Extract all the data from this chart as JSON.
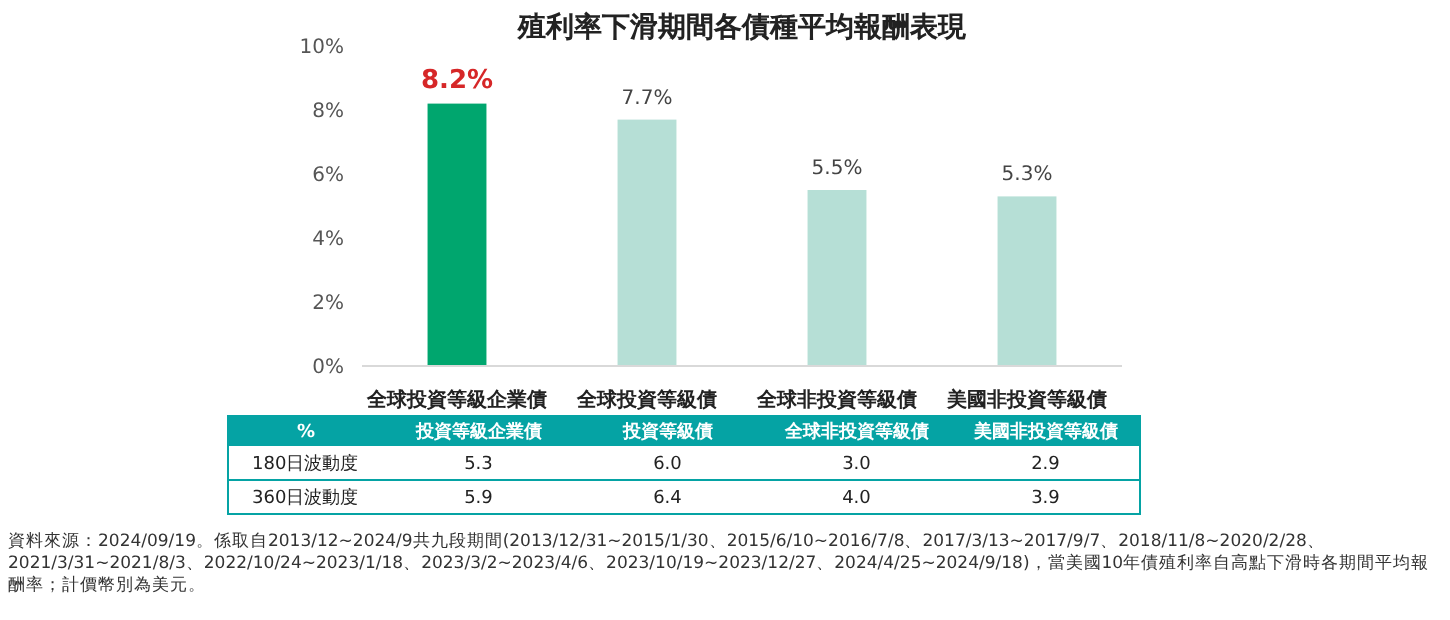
{
  "chart_data": [
    {
      "type": "bar",
      "title": "殖利率下滑期間各債種平均報酬表現",
      "categories": [
        "全球投資等級企業債",
        "全球投資等級債",
        "全球非投資等級債",
        "美國非投資等級債"
      ],
      "values": [
        8.2,
        7.7,
        5.5,
        5.3
      ],
      "colors": [
        "#00a66e",
        "#b6dfd6",
        "#b6dfd6",
        "#b6dfd6"
      ],
      "value_labels": [
        "8.2%",
        "7.7%",
        "5.5%",
        "5.3%"
      ],
      "ylim": [
        0,
        10
      ],
      "yticks": [
        {
          "value": 0,
          "label": "0%"
        },
        {
          "value": 2,
          "label": "2%"
        },
        {
          "value": 4,
          "label": "4%"
        },
        {
          "value": 6,
          "label": "6%"
        },
        {
          "value": 8,
          "label": "8%"
        },
        {
          "value": 10,
          "label": "10%"
        }
      ],
      "grid": false,
      "annotations": [
        "資料來源：2024/09/19。係取自2013/12~2024/9共九段期間(2013/12/31~2015/1/30、2015/6/10~2016/7/8、2017/3/13~2017/9/7、2018/11/8~2020/2/28、2021/3/31~2021/8/3、2022/10/24~2023/1/18、2023/3/2~2023/4/6、2023/10/19~2023/12/27、2024/4/25~2024/9/18)，當美國10年債殖利率自高點下滑時各期間平均報酬率；計價幣別為美元。"
      ]
    },
    {
      "type": "other",
      "title": "%",
      "categories": [
        "投資等級企業債",
        "投資等級債",
        "全球非投資等級債",
        "美國非投資等級債"
      ],
      "series": [
        {
          "name": "180日波動度",
          "values": [
            5.3,
            6.0,
            3.0,
            2.9
          ],
          "value_labels": [
            "5.3",
            "6.0",
            "3.0",
            "2.9"
          ]
        },
        {
          "name": "360日波動度",
          "values": [
            5.9,
            6.4,
            4.0,
            3.9
          ],
          "value_labels": [
            "5.9",
            "6.4",
            "4.0",
            "3.9"
          ]
        }
      ]
    }
  ]
}
